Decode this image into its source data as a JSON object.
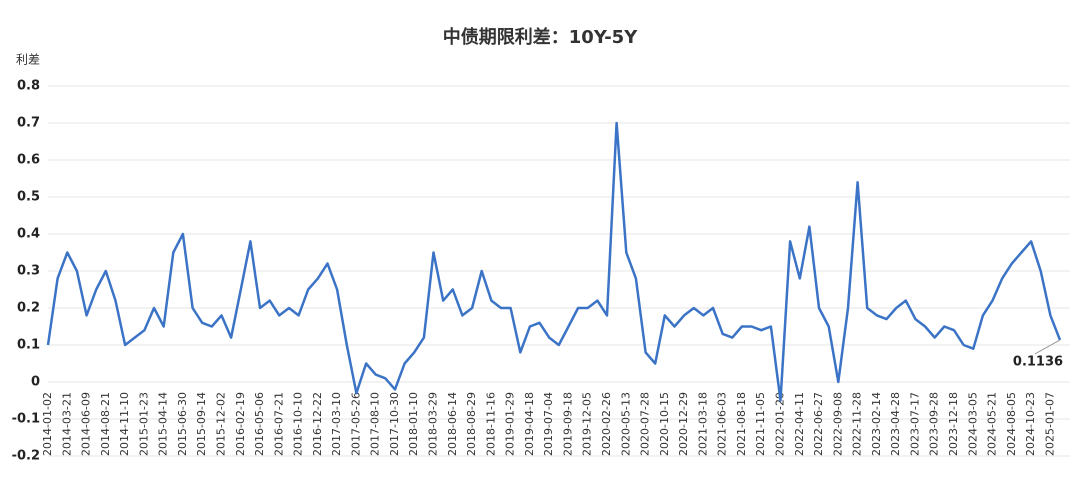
{
  "chart_data": {
    "type": "line",
    "title": "中债期限利差：10Y-5Y",
    "y_label": "利差",
    "categories": [
      "2014-01-02",
      null,
      "2014-03-21",
      null,
      "2014-06-09",
      null,
      "2014-08-21",
      null,
      "2014-11-10",
      null,
      "2015-01-23",
      null,
      "2015-04-14",
      null,
      "2015-06-30",
      null,
      "2015-09-14",
      null,
      "2015-12-02",
      null,
      "2016-02-19",
      null,
      "2016-05-06",
      null,
      "2016-07-21",
      null,
      "2016-10-10",
      null,
      "2016-12-22",
      null,
      "2017-03-10",
      null,
      "2017-05-26",
      null,
      "2017-08-10",
      null,
      "2017-10-30",
      null,
      "2018-01-10",
      null,
      "2018-03-29",
      null,
      "2018-06-14",
      null,
      "2018-08-29",
      null,
      "2018-11-16",
      null,
      "2019-01-29",
      null,
      "2019-04-18",
      null,
      "2019-07-04",
      null,
      "2019-09-18",
      null,
      "2019-12-05",
      null,
      "2020-02-26",
      null,
      "2020-05-13",
      null,
      "2020-07-28",
      null,
      "2020-10-15",
      null,
      "2020-12-29",
      null,
      "2021-03-18",
      null,
      "2021-06-03",
      null,
      "2021-08-18",
      null,
      "2021-11-05",
      null,
      "2022-01-20",
      null,
      "2022-04-11",
      null,
      "2022-06-27",
      null,
      "2022-09-08",
      null,
      "2022-11-28",
      null,
      "2023-02-14",
      null,
      "2023-04-28",
      null,
      "2023-07-17",
      null,
      "2023-09-28",
      null,
      "2023-12-18",
      null,
      "2024-03-05",
      null,
      "2024-05-21",
      null,
      "2024-08-05",
      null,
      "2024-10-23",
      null,
      "2025-01-07",
      null
    ],
    "series": [
      {
        "name": "利差",
        "color": "#3b73c6",
        "values": [
          0.1,
          0.28,
          0.35,
          0.3,
          0.18,
          0.25,
          0.3,
          0.22,
          0.1,
          0.12,
          0.14,
          0.2,
          0.15,
          0.35,
          0.4,
          0.2,
          0.16,
          0.15,
          0.18,
          0.12,
          0.25,
          0.38,
          0.2,
          0.22,
          0.18,
          0.2,
          0.18,
          0.25,
          0.28,
          0.32,
          0.25,
          0.1,
          -0.03,
          0.05,
          0.02,
          0.01,
          -0.02,
          0.05,
          0.08,
          0.12,
          0.35,
          0.22,
          0.25,
          0.18,
          0.2,
          0.3,
          0.22,
          0.2,
          0.2,
          0.08,
          0.15,
          0.16,
          0.12,
          0.1,
          0.15,
          0.2,
          0.2,
          0.22,
          0.18,
          0.7,
          0.35,
          0.28,
          0.08,
          0.05,
          0.18,
          0.15,
          0.18,
          0.2,
          0.18,
          0.2,
          0.13,
          0.12,
          0.15,
          0.15,
          0.14,
          0.15,
          -0.05,
          0.38,
          0.28,
          0.42,
          0.2,
          0.15,
          0.0,
          0.2,
          0.54,
          0.2,
          0.18,
          0.17,
          0.2,
          0.22,
          0.17,
          0.15,
          0.12,
          0.15,
          0.14,
          0.1,
          0.09,
          0.18,
          0.22,
          0.28,
          0.32,
          0.35,
          0.38,
          0.3,
          0.18,
          0.1136
        ]
      }
    ],
    "ylim": [
      -0.2,
      0.8
    ],
    "yticks": [
      -0.2,
      -0.1,
      0,
      0.1,
      0.2,
      0.3,
      0.4,
      0.5,
      0.6,
      0.7,
      0.8
    ],
    "grid": true
  }
}
